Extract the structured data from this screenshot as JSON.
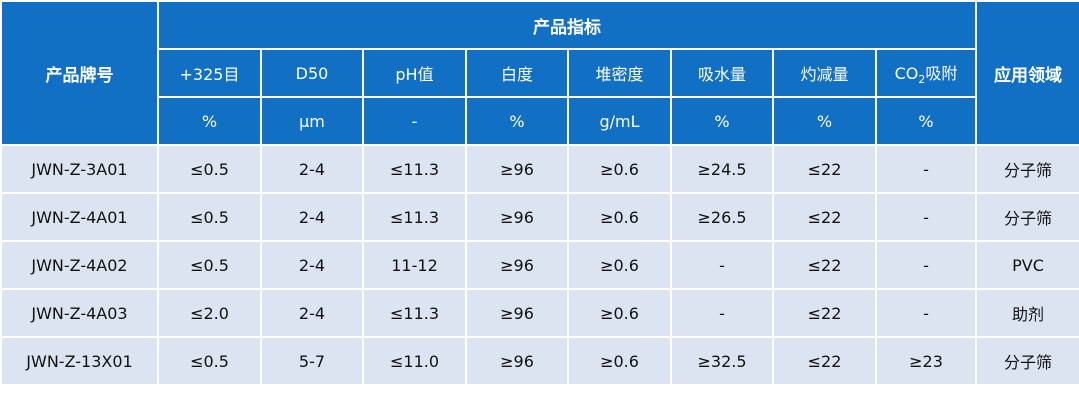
{
  "header": {
    "title": "产品指标",
    "product": "产品牌号",
    "application": "应用领域",
    "columns": [
      "+325目",
      "D50",
      "pH值",
      "白度",
      "堆密度",
      "吸水量",
      "灼减量",
      {
        "base": "CO",
        "sub": "2",
        "rest": "吸附"
      }
    ],
    "units": [
      "%",
      "μm",
      "-",
      "%",
      "g/mL",
      "%",
      "%",
      "%"
    ]
  },
  "table": {
    "rows": [
      [
        "JWN-Z-3A01",
        "≤0.5",
        "2-4",
        "≤11.3",
        "≥96",
        "≥0.6",
        "≥24.5",
        "≤22",
        "-",
        "分子筛"
      ],
      [
        "JWN-Z-4A01",
        "≤0.5",
        "2-4",
        "≤11.3",
        "≥96",
        "≥0.6",
        "≥26.5",
        "≤22",
        "-",
        "分子筛"
      ],
      [
        "JWN-Z-4A02",
        "≤0.5",
        "2-4",
        "11-12",
        "≥96",
        "≥0.6",
        "-",
        "≤22",
        "-",
        "PVC"
      ],
      [
        "JWN-Z-4A03",
        "≤2.0",
        "2-4",
        "≤11.3",
        "≥96",
        "≥0.6",
        "-",
        "≤22",
        "-",
        "助剂"
      ],
      [
        "JWN-Z-13X01",
        "≤0.5",
        "5-7",
        "≤11.0",
        "≥96",
        "≥0.6",
        "≥32.5",
        "≤22",
        "≥23",
        "分子筛"
      ]
    ]
  }
}
